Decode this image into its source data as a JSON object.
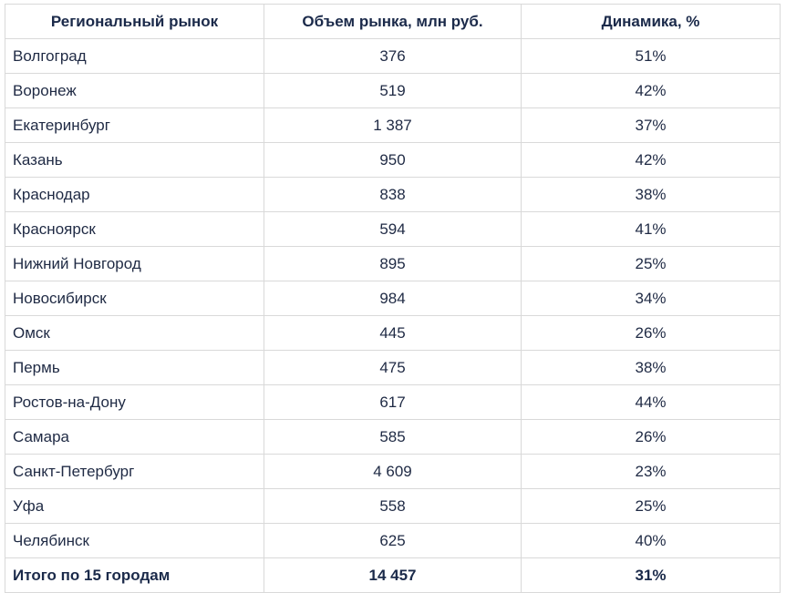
{
  "table": {
    "headers": [
      "Региональный рынок",
      "Объем рынка, млн руб.",
      "Динамика, %"
    ],
    "rows": [
      [
        "Волгоград",
        "376",
        "51%"
      ],
      [
        "Воронеж",
        "519",
        "42%"
      ],
      [
        "Екатеринбург",
        "1 387",
        "37%"
      ],
      [
        "Казань",
        "950",
        "42%"
      ],
      [
        "Краснодар",
        "838",
        "38%"
      ],
      [
        "Красноярск",
        "594",
        "41%"
      ],
      [
        "Нижний Новгород",
        "895",
        "25%"
      ],
      [
        "Новосибирск",
        "984",
        "34%"
      ],
      [
        "Омск",
        "445",
        "26%"
      ],
      [
        "Пермь",
        "475",
        "38%"
      ],
      [
        "Ростов-на-Дону",
        "617",
        "44%"
      ],
      [
        "Самара",
        "585",
        "26%"
      ],
      [
        "Санкт-Петербург",
        "4 609",
        "23%"
      ],
      [
        "Уфа",
        "558",
        "25%"
      ],
      [
        "Челябинск",
        "625",
        "40%"
      ]
    ],
    "total": [
      "Итого по 15 городам",
      "14 457",
      "31%"
    ]
  }
}
